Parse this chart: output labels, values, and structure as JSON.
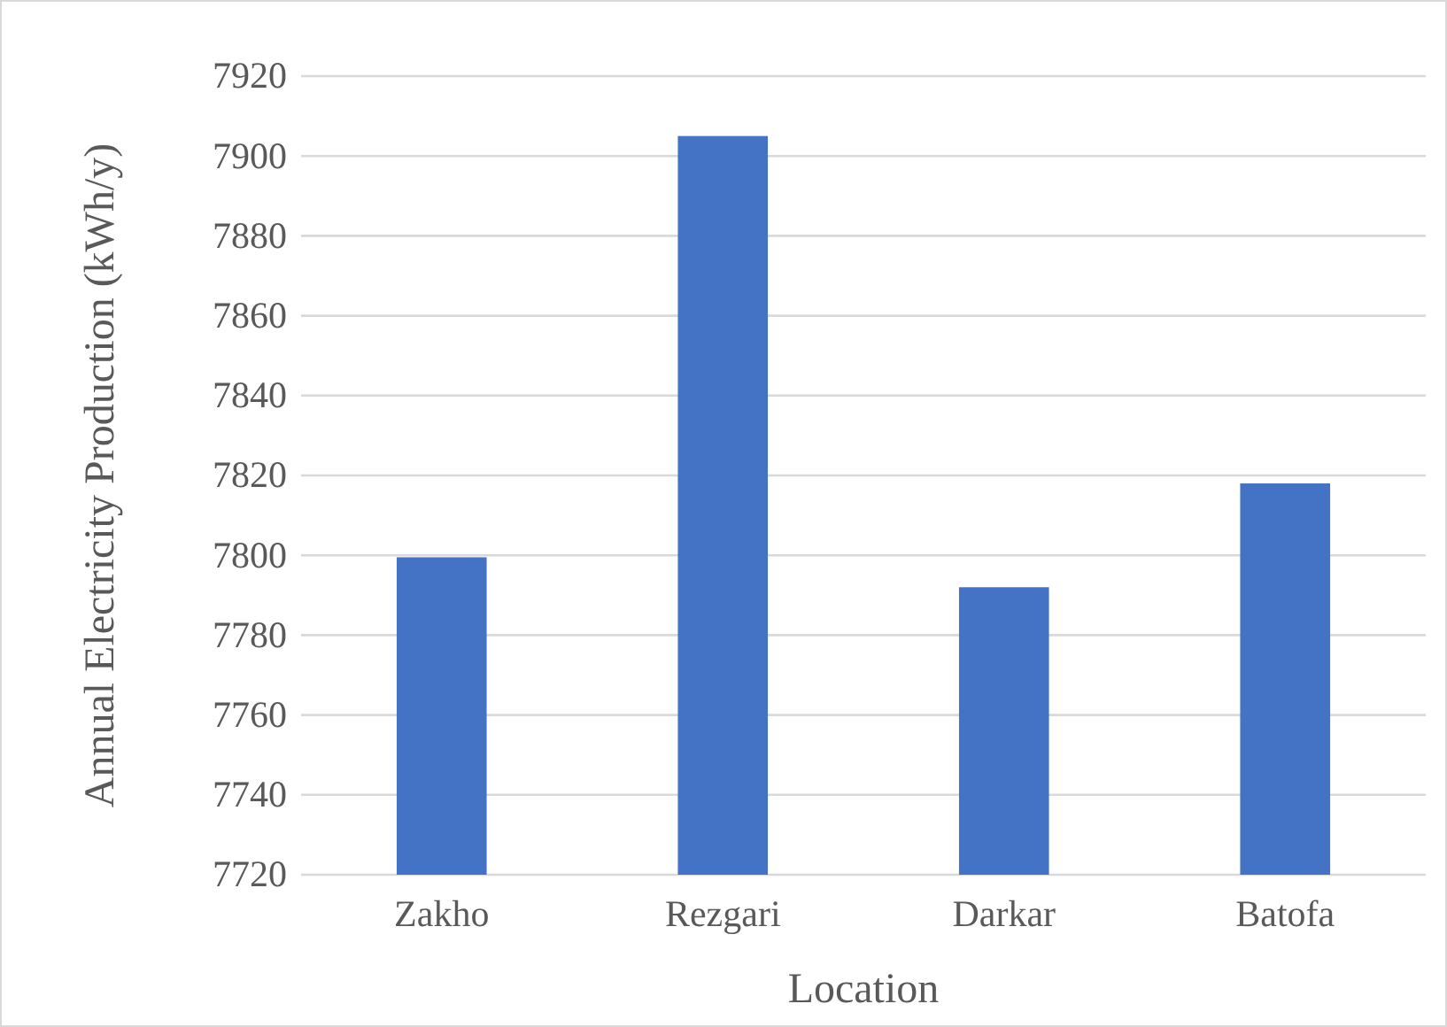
{
  "chart_data": {
    "type": "bar",
    "xlabel": "Location",
    "ylabel": "Annual Electricity Production (kWh/y)",
    "categories": [
      "Zakho",
      "Rezgari",
      "Darkar",
      "Batofa"
    ],
    "values": [
      7799.5,
      7905,
      7792,
      7818
    ],
    "color": "#4472c4",
    "ylim": [
      7720,
      7920
    ],
    "yticks": [
      7720,
      7740,
      7760,
      7780,
      7800,
      7820,
      7840,
      7860,
      7880,
      7900,
      7920
    ],
    "grid": "y"
  }
}
